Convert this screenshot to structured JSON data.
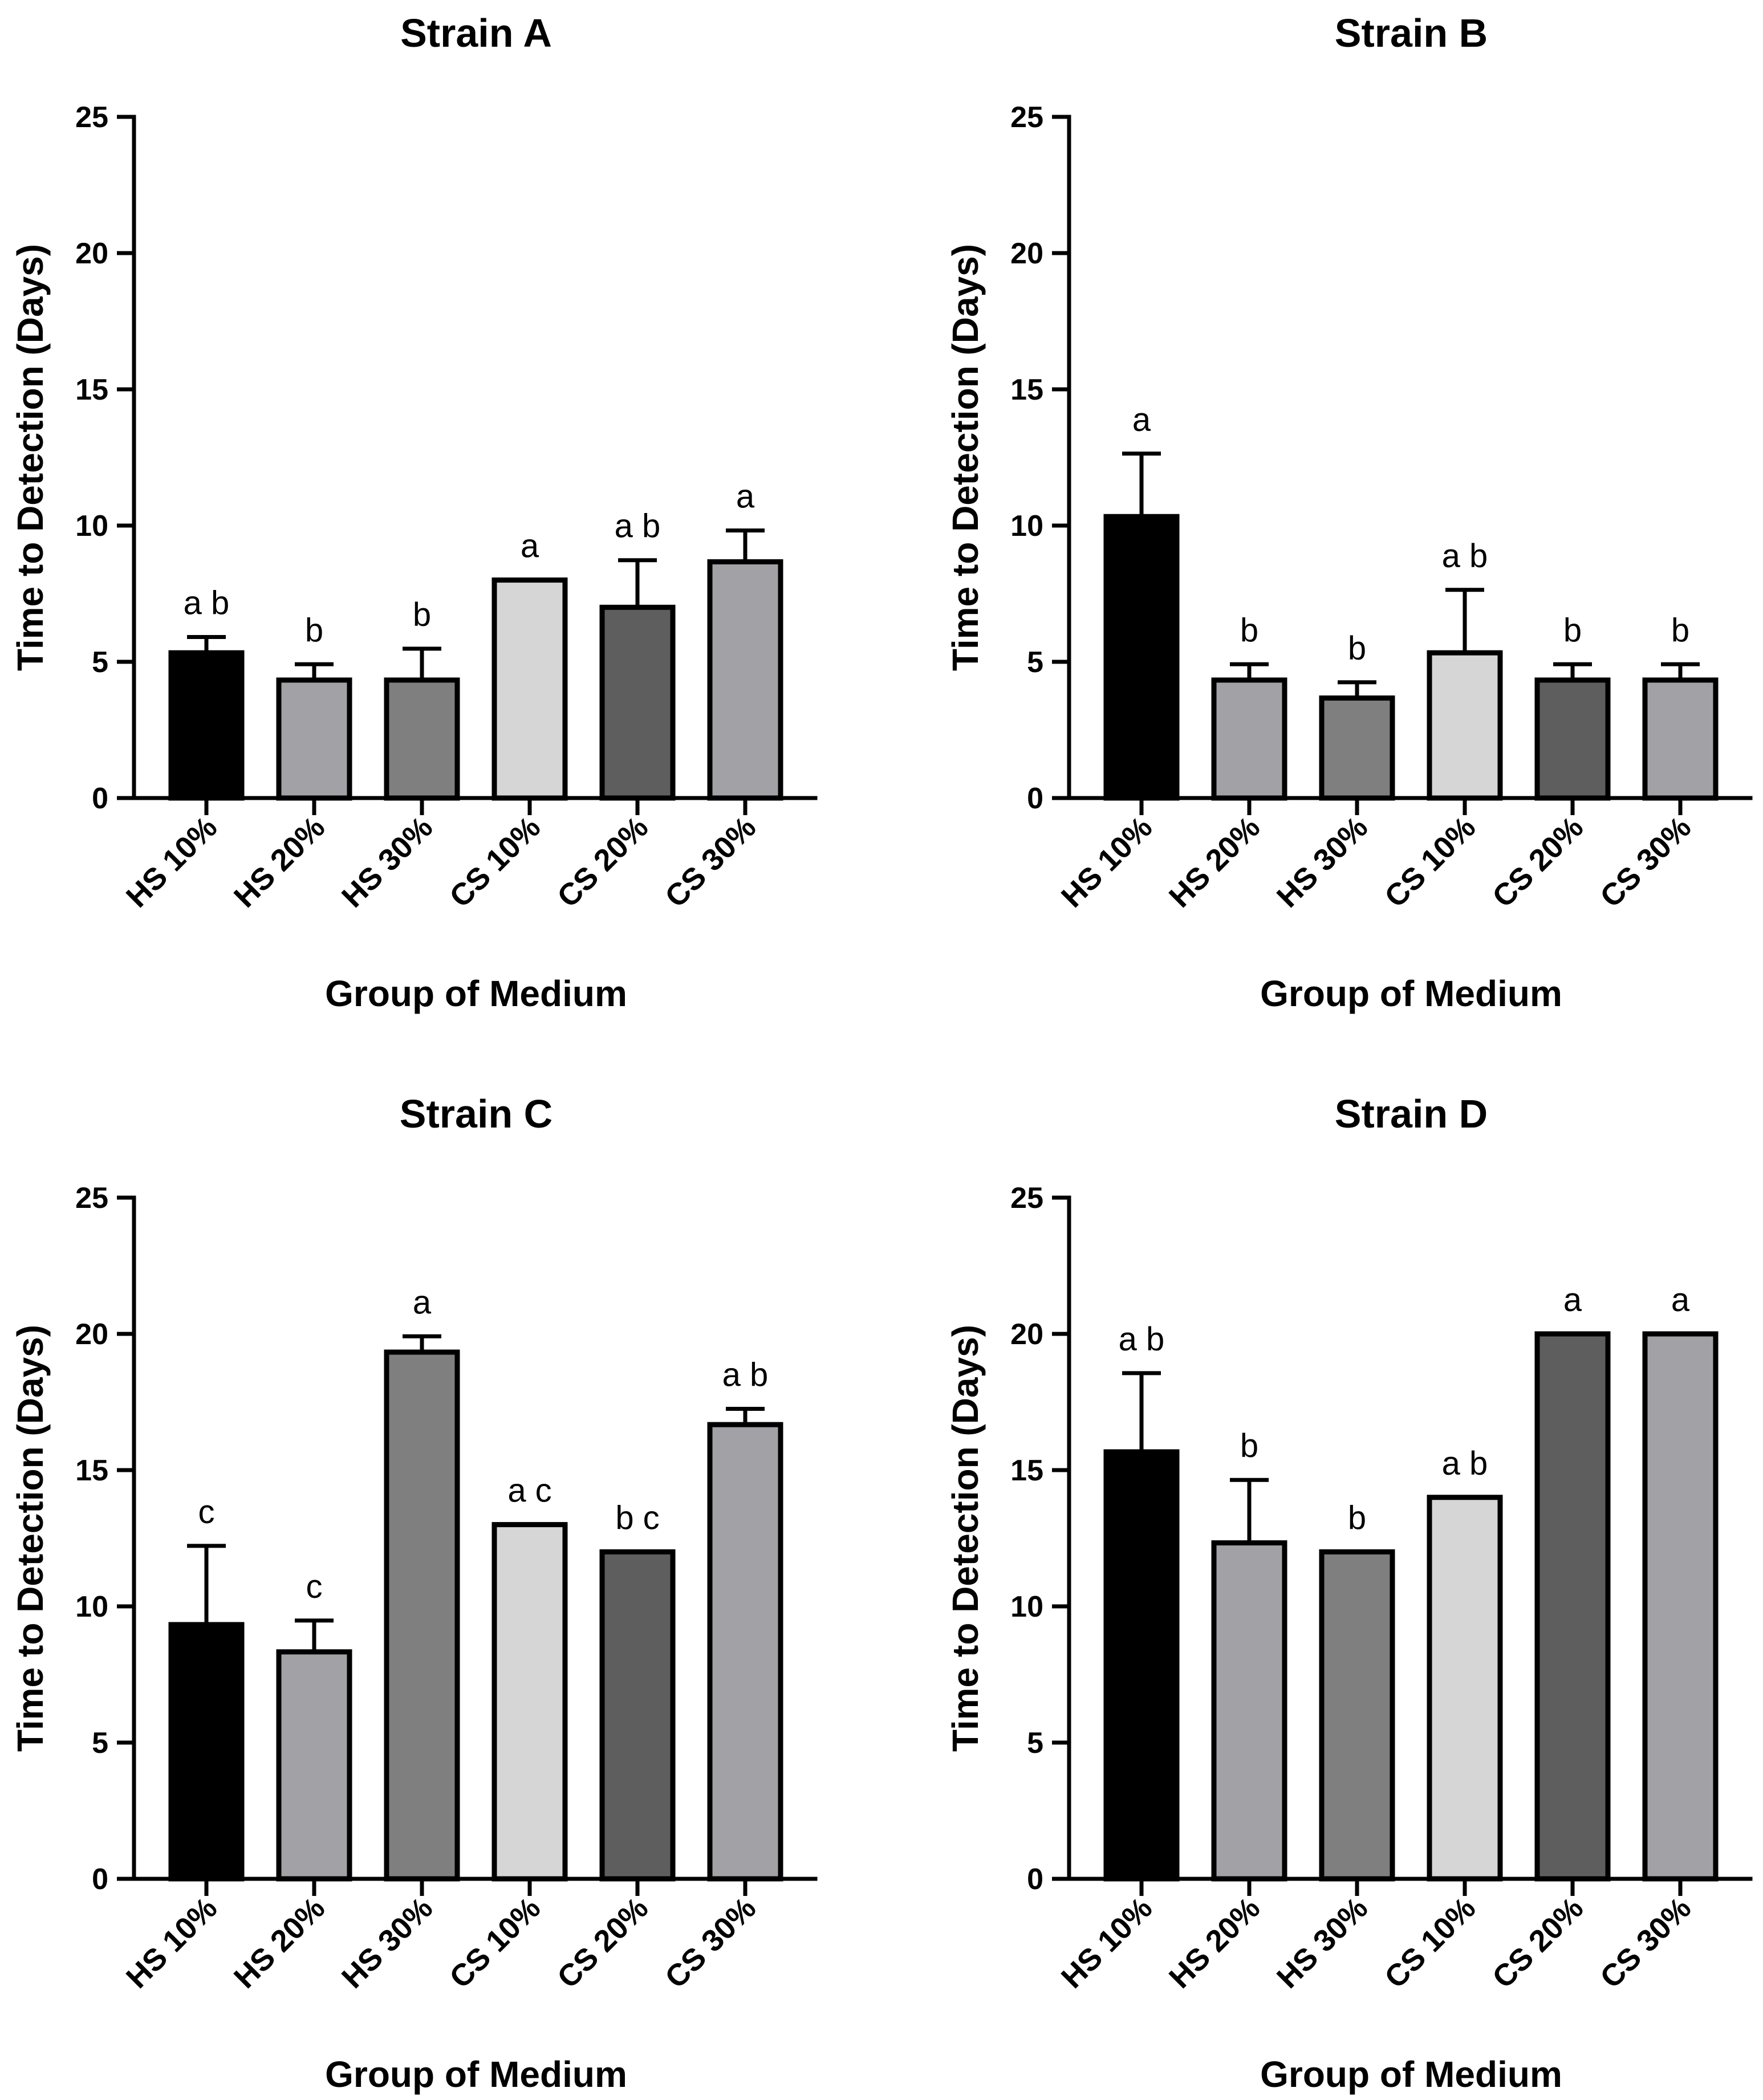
{
  "chart_data": [
    {
      "type": "bar",
      "title": "Strain A",
      "xlabel": "Group of Medium",
      "ylabel": "Time to Detection (Days)",
      "ylim": [
        0,
        25
      ],
      "yticks": [
        0,
        5,
        10,
        15,
        20,
        25
      ],
      "categories": [
        "HS 10%",
        "HS 20%",
        "HS 30%",
        "CS 10%",
        "CS 20%",
        "CS 30%"
      ],
      "values": [
        5.33,
        4.33,
        4.33,
        8.0,
        7.0,
        8.67
      ],
      "errors": [
        0.58,
        0.58,
        1.15,
        0,
        1.73,
        1.15
      ],
      "significance": [
        "a b",
        "b",
        "b",
        "a",
        "a b",
        "a"
      ]
    },
    {
      "type": "bar",
      "title": "Strain B",
      "xlabel": "Group of Medium",
      "ylabel": "Time to Detection (Days)",
      "ylim": [
        0,
        25
      ],
      "yticks": [
        0,
        5,
        10,
        15,
        20,
        25
      ],
      "categories": [
        "HS 10%",
        "HS 20%",
        "HS 30%",
        "CS 10%",
        "CS 20%",
        "CS 30%"
      ],
      "values": [
        10.33,
        4.33,
        3.67,
        5.33,
        4.33,
        4.33
      ],
      "errors": [
        2.31,
        0.58,
        0.58,
        2.31,
        0.58,
        0.58
      ],
      "significance": [
        "a",
        "b",
        "b",
        "a b",
        "b",
        "b"
      ]
    },
    {
      "type": "bar",
      "title": "Strain C",
      "xlabel": "Group of Medium",
      "ylabel": "Time to Detection (Days)",
      "ylim": [
        0,
        25
      ],
      "yticks": [
        0,
        5,
        10,
        15,
        20,
        25
      ],
      "categories": [
        "HS 10%",
        "HS 20%",
        "HS 30%",
        "CS 10%",
        "CS 20%",
        "CS 30%"
      ],
      "values": [
        9.33,
        8.33,
        19.33,
        13.0,
        12.0,
        16.67
      ],
      "errors": [
        2.89,
        1.15,
        0.58,
        0,
        0,
        0.58
      ],
      "significance": [
        "c",
        "c",
        "a",
        "a c",
        "b c",
        "a b"
      ]
    },
    {
      "type": "bar",
      "title": "Strain D",
      "xlabel": "Group of Medium",
      "ylabel": "Time to Detection (Days)",
      "ylim": [
        0,
        25
      ],
      "yticks": [
        0,
        5,
        10,
        15,
        20,
        25
      ],
      "categories": [
        "HS 10%",
        "HS 20%",
        "HS 30%",
        "CS 10%",
        "CS 20%",
        "CS 30%"
      ],
      "values": [
        15.67,
        12.33,
        12.0,
        14.0,
        20.0,
        20.0
      ],
      "errors": [
        2.89,
        2.31,
        0,
        0,
        0,
        0
      ],
      "significance": [
        "a b",
        "b",
        "b",
        "a b",
        "a",
        "a"
      ]
    }
  ],
  "bar_colors": [
    "#000000",
    "#a1a1a6",
    "#7f7f7f",
    "#d6d6d6",
    "#5e5e5e",
    "#a1a1a6"
  ]
}
